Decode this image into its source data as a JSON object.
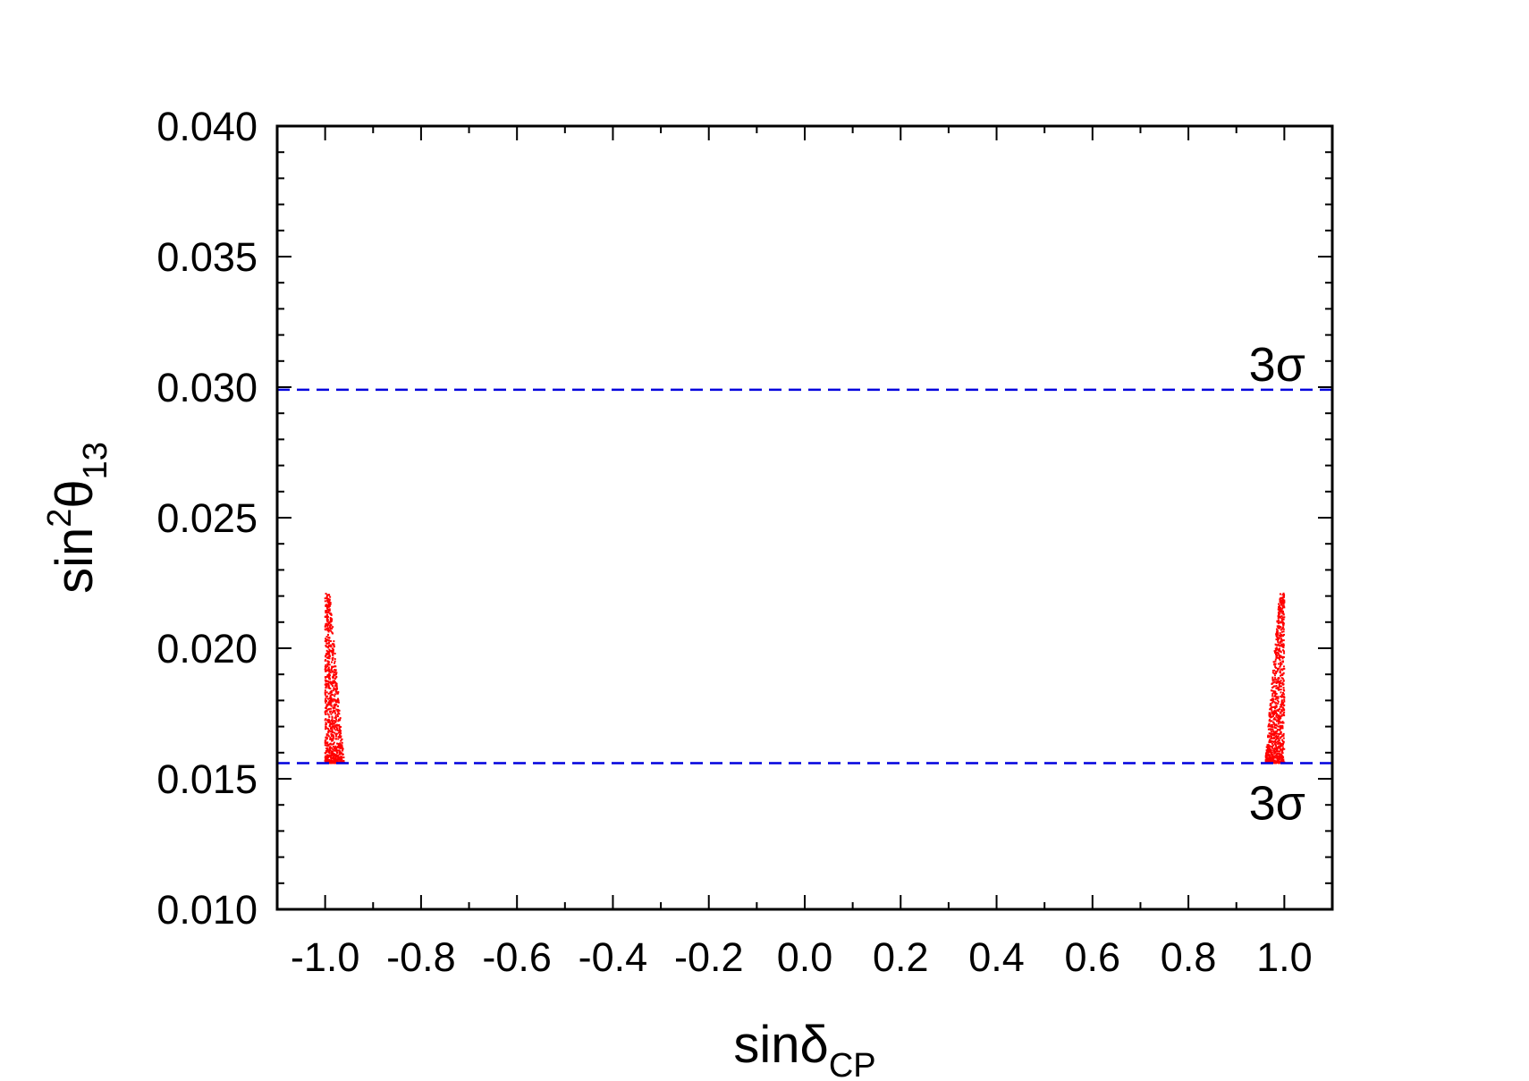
{
  "chart_data": {
    "type": "scatter",
    "xlabel": {
      "main": "sin",
      "symbol": "δ",
      "subscript": "CP"
    },
    "ylabel": {
      "main": "sin",
      "superscript": "2",
      "symbol": "θ",
      "subscript": "13"
    },
    "xlim": [
      -1.1,
      1.1
    ],
    "ylim": [
      0.01,
      0.04
    ],
    "xticks": [
      -1.0,
      -0.8,
      -0.6,
      -0.4,
      -0.2,
      0.0,
      0.2,
      0.4,
      0.6,
      0.8,
      1.0
    ],
    "xtick_labels": [
      "-1.0",
      "-0.8",
      "-0.6",
      "-0.4",
      "-0.2",
      "0.0",
      "0.2",
      "0.4",
      "0.6",
      "0.8",
      "1.0"
    ],
    "yticks": [
      0.01,
      0.015,
      0.02,
      0.025,
      0.03,
      0.035,
      0.04
    ],
    "ytick_labels": [
      "0.010",
      "0.015",
      "0.020",
      "0.025",
      "0.030",
      "0.035",
      "0.040"
    ],
    "grid": false,
    "point_color": "#ff0000",
    "line_color": "#0000dd",
    "series": [
      {
        "regions": [
          {
            "x_range": [
              -1.0,
              -0.96
            ],
            "y_range": [
              0.0156,
              0.0221
            ]
          },
          {
            "x_range": [
              0.96,
              1.0
            ],
            "y_range": [
              0.0156,
              0.0221
            ]
          }
        ]
      }
    ],
    "reference_lines": [
      {
        "y": 0.0299,
        "style": "dashed",
        "label": "3σ",
        "label_position": "above"
      },
      {
        "y": 0.0156,
        "style": "dashed",
        "label": "3σ",
        "label_position": "below"
      }
    ]
  }
}
